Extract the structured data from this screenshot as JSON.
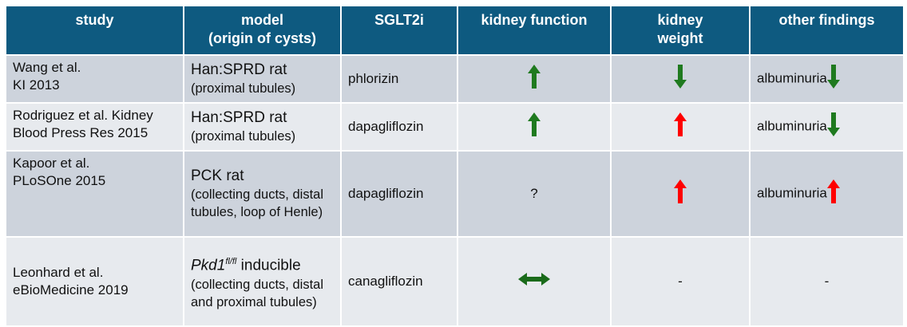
{
  "headers": {
    "study": "study",
    "model_line1": "model",
    "model_line2": "(origin of cysts)",
    "sglt2i": "SGLT2i",
    "kidney_function": "kidney function",
    "kidney_weight_line1": "kidney",
    "kidney_weight_line2": "weight",
    "other": "other findings"
  },
  "colors": {
    "header": "#0e5a80",
    "row_odd": "#cdd3dc",
    "row_even": "#e7eaee",
    "arrow_green": "#1f7a1f",
    "arrow_red": "#ff0000"
  },
  "rows": [
    {
      "study1": "Wang et al.",
      "study2": "KI 2013",
      "model_main": "Han:SPRD rat",
      "model_sub": "(proximal tubules)",
      "sglt2i": "phlorizin",
      "kidney_function": "up-green",
      "kidney_weight": "down-green",
      "other_text": "albuminuria",
      "other_arrow": "down-green"
    },
    {
      "study1": "Rodriguez et al. Kidney",
      "study2": "Blood Press Res 2015",
      "model_main": "Han:SPRD rat",
      "model_sub": "(proximal tubules)",
      "sglt2i": "dapagliflozin",
      "kidney_function": "up-green",
      "kidney_weight": "up-red",
      "other_text": "albuminuria",
      "other_arrow": "down-green"
    },
    {
      "study1": "Kapoor et al.",
      "study2": "PLoSOne 2015",
      "model_main": "PCK rat",
      "model_sub": "(collecting ducts, distal tubules, loop of Henle)",
      "sglt2i": "dapagliflozin",
      "kidney_function_text": "?",
      "kidney_weight": "up-red",
      "other_text": "albuminuria",
      "other_arrow": "up-red"
    },
    {
      "study1": "Leonhard et al.",
      "study2": "eBioMedicine 2019",
      "model_gene": "Pkd1",
      "model_sup": "fl/fl",
      "model_main_rest": " inducible",
      "model_sub": "(collecting ducts, distal and proximal tubules)",
      "sglt2i": "canagliflozin",
      "kidney_function": "both-green",
      "kidney_weight_text": "-",
      "other_text": "-"
    }
  ]
}
